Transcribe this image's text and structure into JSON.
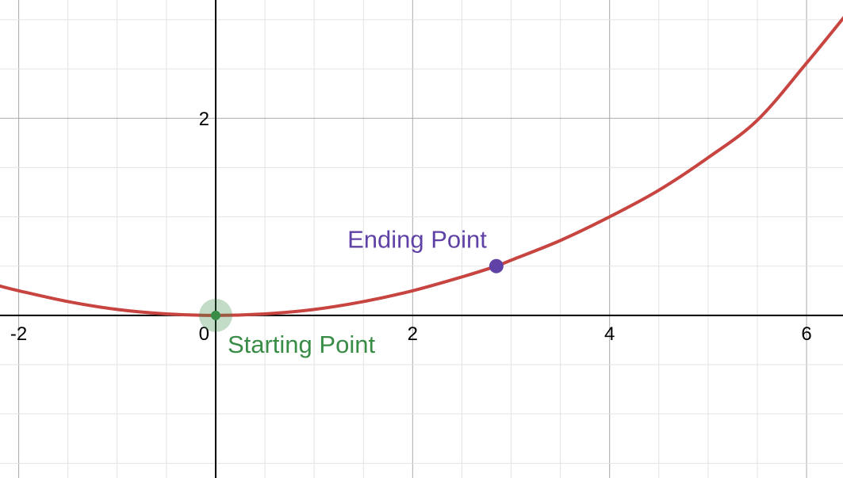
{
  "chart_data": {
    "type": "line",
    "title": "",
    "xlabel": "",
    "ylabel": "",
    "xlim": [
      -2.19,
      6.37
    ],
    "ylim": [
      -1.65,
      3.2
    ],
    "x_ticks": [
      -2,
      0,
      2,
      4,
      6
    ],
    "y_ticks": [
      2
    ],
    "grid": true,
    "series": [
      {
        "color": "#c74440",
        "x": [
          -2.2,
          -2,
          -1.5,
          -1,
          -0.5,
          0,
          0.5,
          1,
          1.5,
          2,
          2.5,
          2.85,
          3,
          3.5,
          4,
          4.5,
          5,
          5.5,
          6,
          6.4
        ],
        "y": [
          0.3,
          0.25,
          0.14,
          0.06,
          0.015,
          0,
          0.015,
          0.06,
          0.14,
          0.25,
          0.39,
          0.5,
          0.56,
          0.76,
          1.0,
          1.27,
          1.6,
          1.98,
          2.56,
          3.05
        ]
      }
    ],
    "points": [
      {
        "label": "Starting Point",
        "x": 0,
        "y": 0,
        "color": "#388c46"
      },
      {
        "label": "Ending Point",
        "x": 2.85,
        "y": 0.5,
        "color": "#6042a6"
      }
    ]
  }
}
